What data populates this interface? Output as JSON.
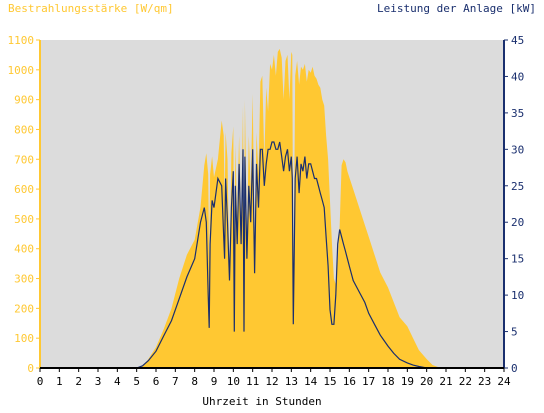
{
  "chart_data": {
    "type": "area",
    "title_left": "Bestrahlungsstärke [W/qm]",
    "title_right": "Leistung der Anlage [kW]",
    "xlabel": "Uhrzeit in Stunden",
    "xlim": [
      0,
      24
    ],
    "x_ticks": [
      "0",
      "1",
      "2",
      "3",
      "4",
      "5",
      "6",
      "7",
      "8",
      "9",
      "10",
      "11",
      "12",
      "13",
      "14",
      "15",
      "16",
      "17",
      "18",
      "19",
      "20",
      "21",
      "22",
      "23",
      "24"
    ],
    "y_left": {
      "min": 0,
      "max": 1100,
      "ticks": [
        "0",
        "100",
        "200",
        "300",
        "400",
        "500",
        "600",
        "700",
        "800",
        "900",
        "1000",
        "1100"
      ]
    },
    "y_right": {
      "min": 0,
      "max": 45,
      "ticks": [
        "0",
        "5",
        "10",
        "15",
        "20",
        "25",
        "30",
        "35",
        "40",
        "45"
      ]
    },
    "grid": false,
    "colors": {
      "plot_background": "#dcdcdc",
      "irradiance": "#ffc832",
      "power": "#1a2f6e",
      "axis_left": "#ffc832",
      "axis_right": "#1a2f6e"
    },
    "series": [
      {
        "axis": "left",
        "style": "area",
        "x": [
          0,
          5.0,
          5.3,
          5.6,
          6.0,
          6.4,
          6.8,
          7.2,
          7.6,
          8.0,
          8.3,
          8.5,
          8.6,
          8.7,
          8.75,
          8.8,
          8.9,
          9.0,
          9.2,
          9.4,
          9.5,
          9.55,
          9.6,
          9.7,
          9.8,
          9.9,
          10.0,
          10.05,
          10.1,
          10.2,
          10.3,
          10.4,
          10.5,
          10.55,
          10.6,
          10.7,
          10.8,
          10.9,
          11.0,
          11.1,
          11.2,
          11.3,
          11.4,
          11.5,
          11.6,
          11.7,
          11.8,
          11.9,
          12.0,
          12.1,
          12.2,
          12.3,
          12.4,
          12.5,
          12.6,
          12.7,
          12.8,
          12.9,
          13.0,
          13.05,
          13.1,
          13.2,
          13.3,
          13.4,
          13.5,
          13.6,
          13.7,
          13.8,
          13.9,
          14.0,
          14.1,
          14.2,
          14.3,
          14.4,
          14.5,
          14.6,
          14.7,
          14.8,
          14.9,
          15.0,
          15.1,
          15.2,
          15.3,
          15.4,
          15.5,
          15.6,
          15.7,
          15.8,
          15.9,
          16.0,
          16.2,
          16.5,
          16.8,
          17.0,
          17.3,
          17.6,
          18.0,
          18.3,
          18.6,
          19.0,
          19.3,
          19.6,
          20.0,
          20.3,
          20.6,
          21.0,
          24
        ],
        "y": [
          0,
          0,
          5,
          30,
          70,
          130,
          200,
          300,
          380,
          430,
          540,
          680,
          720,
          650,
          350,
          650,
          710,
          640,
          700,
          830,
          780,
          550,
          790,
          700,
          300,
          720,
          810,
          200,
          750,
          500,
          780,
          460,
          880,
          300,
          900,
          420,
          780,
          600,
          920,
          400,
          790,
          650,
          960,
          980,
          700,
          940,
          860,
          1020,
          1000,
          1050,
          980,
          1060,
          1070,
          1040,
          900,
          1030,
          1050,
          900,
          1060,
          1050,
          200,
          980,
          1030,
          950,
          1010,
          1000,
          1020,
          960,
          1000,
          990,
          1010,
          980,
          970,
          950,
          940,
          900,
          880,
          780,
          700,
          560,
          420,
          300,
          280,
          360,
          480,
          680,
          700,
          690,
          660,
          640,
          600,
          540,
          480,
          440,
          380,
          320,
          270,
          220,
          170,
          140,
          100,
          60,
          30,
          10,
          3,
          0,
          0
        ]
      },
      {
        "axis": "right",
        "style": "line",
        "x": [
          0,
          5.0,
          5.3,
          5.6,
          6.0,
          6.4,
          6.8,
          7.2,
          7.6,
          8.0,
          8.3,
          8.5,
          8.6,
          8.7,
          8.75,
          8.8,
          8.9,
          9.0,
          9.2,
          9.4,
          9.5,
          9.55,
          9.6,
          9.7,
          9.8,
          9.9,
          10.0,
          10.05,
          10.1,
          10.2,
          10.3,
          10.4,
          10.5,
          10.55,
          10.6,
          10.7,
          10.8,
          10.9,
          11.0,
          11.1,
          11.2,
          11.3,
          11.4,
          11.5,
          11.6,
          11.7,
          11.8,
          11.9,
          12.0,
          12.1,
          12.2,
          12.3,
          12.4,
          12.5,
          12.6,
          12.7,
          12.8,
          12.9,
          13.0,
          13.05,
          13.1,
          13.2,
          13.3,
          13.4,
          13.5,
          13.6,
          13.7,
          13.8,
          13.9,
          14.0,
          14.1,
          14.2,
          14.3,
          14.4,
          14.5,
          14.6,
          14.7,
          14.8,
          14.9,
          15.0,
          15.1,
          15.2,
          15.3,
          15.4,
          15.5,
          15.6,
          15.7,
          15.8,
          15.9,
          16.0,
          16.2,
          16.5,
          16.8,
          17.0,
          17.3,
          17.6,
          18.0,
          18.3,
          18.6,
          19.0,
          19.3,
          19.6,
          20.0,
          20.3,
          20.6,
          21.0,
          24
        ],
        "y": [
          0,
          0,
          0.3,
          1.0,
          2.3,
          4.4,
          6.5,
          9.5,
          12.5,
          15,
          20,
          22,
          20,
          10,
          5.5,
          17,
          23,
          22,
          26,
          25,
          18,
          15,
          26,
          20,
          12,
          22,
          27,
          5,
          25,
          17,
          28,
          17,
          30,
          5,
          29,
          15,
          25,
          20,
          30,
          13,
          28,
          22,
          30,
          30,
          25,
          28,
          30,
          30,
          31,
          31,
          30,
          30,
          31,
          29,
          27,
          29,
          30,
          27,
          29,
          26,
          6,
          26,
          29,
          24,
          28,
          27,
          29,
          26,
          28,
          28,
          27,
          26,
          26,
          25,
          24,
          23,
          22,
          18,
          14,
          8,
          6,
          6,
          10,
          17,
          19,
          18,
          17,
          16,
          15,
          14,
          12,
          10.5,
          9,
          7.5,
          6,
          4.5,
          3,
          2,
          1.2,
          0.7,
          0.4,
          0.2,
          0,
          0,
          0,
          0,
          0
        ]
      }
    ]
  }
}
